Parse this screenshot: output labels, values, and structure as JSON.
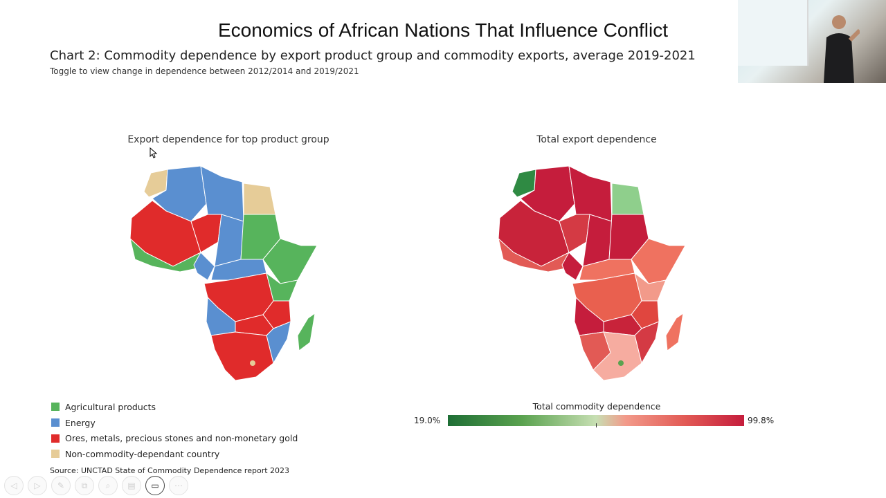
{
  "slide": {
    "title": "Economics of African Nations That Influence Conflict"
  },
  "chart": {
    "title": "Chart 2: Commodity dependence by export product group and commodity exports, average 2019-2021",
    "subtitle": "Toggle to view change in dependence between 2012/2014 and 2019/2021",
    "source": "Source: UNCTAD State of Commodity Dependence report 2023"
  },
  "left_map": {
    "title": "Export dependence for top product group",
    "legend": [
      {
        "label": "Agricultural products",
        "color": "#57b45c"
      },
      {
        "label": "Energy",
        "color": "#5a8fd0"
      },
      {
        "label": "Ores, metals, precious stones and non-monetary gold",
        "color": "#e02b2b"
      },
      {
        "label": "Non-commodity-dependant country",
        "color": "#e6cc98"
      }
    ]
  },
  "right_map": {
    "title": "Total export dependence",
    "scale_title": "Total commodity dependence",
    "scale_min": "19.0%",
    "scale_max": "99.8%"
  },
  "toolbar": {
    "buttons": [
      {
        "name": "back-icon",
        "glyph": "◁"
      },
      {
        "name": "forward-icon",
        "glyph": "▷"
      },
      {
        "name": "pen-icon",
        "glyph": "✎"
      },
      {
        "name": "copy-icon",
        "glyph": "⧉"
      },
      {
        "name": "zoom-icon",
        "glyph": "⌕"
      },
      {
        "name": "subtitles-icon",
        "glyph": "▤"
      },
      {
        "name": "camera-icon",
        "glyph": "▭"
      },
      {
        "name": "more-icon",
        "glyph": "⋯"
      }
    ]
  }
}
